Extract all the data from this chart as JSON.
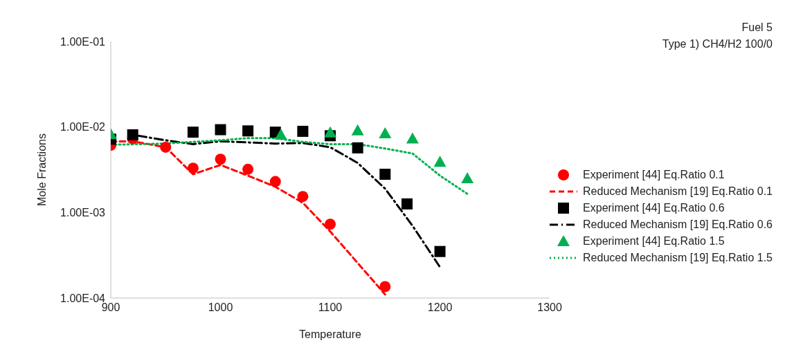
{
  "chart_data": {
    "type": "scatter",
    "xlabel": "Temperature",
    "ylabel": "Mole Fractions",
    "annotations": [
      "Fuel 5",
      "Type 1) CH4/H2 100/0"
    ],
    "log": "y",
    "legend": "right",
    "xlim": [
      900,
      1300
    ],
    "xticks": [
      900,
      1000,
      1100,
      1200,
      1300
    ],
    "ylim": [
      0.0001,
      0.1
    ],
    "yticks": [
      {
        "value": 0.0001,
        "label": "1.00E-04"
      },
      {
        "value": 0.001,
        "label": "1.00E-03"
      },
      {
        "value": 0.01,
        "label": "1.00E-02"
      },
      {
        "value": 0.1,
        "label": "1.00E-01"
      }
    ],
    "series": [
      {
        "name": "Experiment [44] Eq.Ratio 0.1",
        "marker": "circle",
        "color": "#ff0000",
        "x": [
          900,
          920,
          950,
          975,
          1000,
          1025,
          1050,
          1075,
          1100,
          1150
        ],
        "values": [
          0.0061,
          0.0073,
          0.0058,
          0.0033,
          0.0042,
          0.0032,
          0.0023,
          0.00154,
          0.00073,
          0.000136
        ]
      },
      {
        "name": "Reduced Mechanism [19] Eq.Ratio 0.1",
        "type": "line",
        "marker": "none",
        "line_style": "dashed",
        "color": "#ff0000",
        "x": [
          900,
          920,
          950,
          975,
          1000,
          1025,
          1050,
          1075,
          1100,
          1150
        ],
        "values": [
          0.0068,
          0.0068,
          0.0058,
          0.0028,
          0.0036,
          0.0027,
          0.002,
          0.0013,
          0.0006,
          0.00011
        ]
      },
      {
        "name": "Experiment [44] Eq.Ratio 0.6",
        "marker": "square",
        "color": "#000000",
        "x": [
          900,
          920,
          975,
          1000,
          1025,
          1050,
          1075,
          1100,
          1125,
          1150,
          1170,
          1200
        ],
        "values": [
          0.0072,
          0.0081,
          0.0087,
          0.0093,
          0.009,
          0.0087,
          0.0089,
          0.0079,
          0.0057,
          0.0028,
          0.00126,
          0.00035
        ]
      },
      {
        "name": "Reduced Mechanism [19] Eq.Ratio 0.6",
        "type": "line",
        "marker": "none",
        "line_style": "dashdot",
        "color": "#000000",
        "x": [
          925,
          950,
          975,
          1000,
          1050,
          1075,
          1100,
          1125,
          1150,
          1175,
          1200
        ],
        "values": [
          0.0079,
          0.007,
          0.0063,
          0.0068,
          0.0064,
          0.0065,
          0.0058,
          0.0038,
          0.0019,
          0.0007,
          0.00023
        ]
      },
      {
        "name": "Experiment [44] Eq.Ratio 1.5",
        "marker": "triangle",
        "color": "#00b050",
        "x": [
          900,
          1055,
          1100,
          1125,
          1150,
          1175,
          1200,
          1225
        ],
        "values": [
          0.0082,
          0.0081,
          0.0086,
          0.0091,
          0.0084,
          0.0073,
          0.0039,
          0.0025
        ]
      },
      {
        "name": "Reduced Mechanism [19] Eq.Ratio 1.5",
        "type": "line",
        "marker": "none",
        "line_style": "dotted",
        "color": "#00b050",
        "x": [
          900,
          925,
          950,
          1000,
          1025,
          1050,
          1075,
          1100,
          1125,
          1150,
          1175,
          1200,
          1225
        ],
        "values": [
          0.0062,
          0.0063,
          0.0064,
          0.007,
          0.0074,
          0.0074,
          0.0067,
          0.0063,
          0.0063,
          0.0056,
          0.0049,
          0.0027,
          0.00165
        ]
      }
    ]
  }
}
